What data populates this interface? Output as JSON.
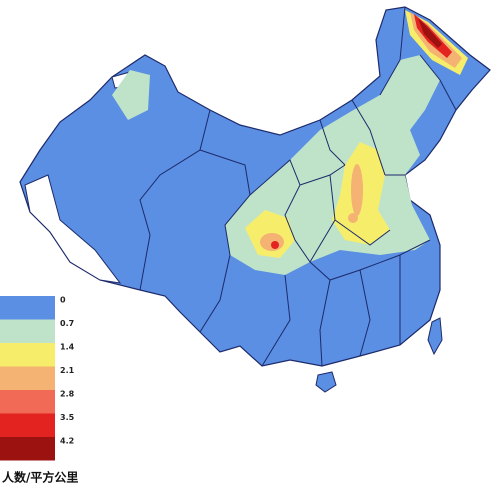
{
  "legend": {
    "items": [
      {
        "label": "0",
        "color": "#5a8fe3"
      },
      {
        "label": "0.7",
        "color": "#bfe3c9"
      },
      {
        "label": "1.4",
        "color": "#f6ee6a"
      },
      {
        "label": "2.1",
        "color": "#f4b273"
      },
      {
        "label": "2.8",
        "color": "#f06a55"
      },
      {
        "label": "3.5",
        "color": "#e2231f"
      },
      {
        "label": "4.2",
        "color": "#9c1210"
      }
    ],
    "unit": "人数/平方公里"
  }
}
